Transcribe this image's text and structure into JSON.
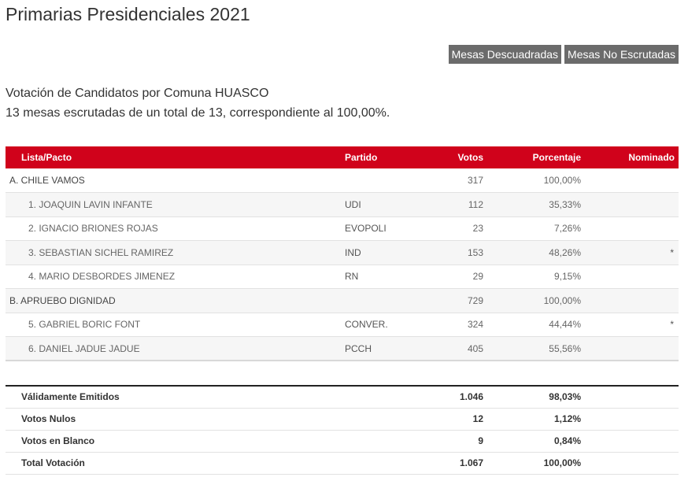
{
  "page_title": "Primarias Presidenciales 2021",
  "buttons": {
    "mesas_descuadradas": "Mesas Descuadradas",
    "mesas_no_escrutadas": "Mesas No Escrutadas"
  },
  "info": {
    "line1": "Votación de Candidatos por Comuna HUASCO",
    "line2": "13 mesas escrutadas de un total de 13, correspondiente al 100,00%."
  },
  "table": {
    "headers": {
      "lista": "Lista/Pacto",
      "partido": "Partido",
      "votos": "Votos",
      "porcentaje": "Porcentaje",
      "nominado": "Nominado"
    },
    "rows": [
      {
        "name": "A. CHILE VAMOS",
        "partido": "",
        "votos": "317",
        "porcentaje": "100,00%",
        "nominado": ""
      },
      {
        "name": "1. JOAQUIN LAVIN INFANTE",
        "partido": "UDI",
        "votos": "112",
        "porcentaje": "35,33%",
        "nominado": ""
      },
      {
        "name": "2. IGNACIO BRIONES ROJAS",
        "partido": "EVOPOLI",
        "votos": "23",
        "porcentaje": "7,26%",
        "nominado": ""
      },
      {
        "name": "3. SEBASTIAN SICHEL RAMIREZ",
        "partido": "IND",
        "votos": "153",
        "porcentaje": "48,26%",
        "nominado": "*"
      },
      {
        "name": "4. MARIO DESBORDES JIMENEZ",
        "partido": "RN",
        "votos": "29",
        "porcentaje": "9,15%",
        "nominado": ""
      },
      {
        "name": "B. APRUEBO DIGNIDAD",
        "partido": "",
        "votos": "729",
        "porcentaje": "100,00%",
        "nominado": ""
      },
      {
        "name": "5. GABRIEL BORIC FONT",
        "partido": "CONVER.",
        "votos": "324",
        "porcentaje": "44,44%",
        "nominado": "*"
      },
      {
        "name": "6. DANIEL JADUE JADUE",
        "partido": "PCCH",
        "votos": "405",
        "porcentaje": "55,56%",
        "nominado": ""
      }
    ]
  },
  "totals": [
    {
      "label": "Válidamente Emitidos",
      "votos": "1.046",
      "porcentaje": "98,03%"
    },
    {
      "label": "Votos Nulos",
      "votos": "12",
      "porcentaje": "1,12%"
    },
    {
      "label": "Votos en Blanco",
      "votos": "9",
      "porcentaje": "0,84%"
    },
    {
      "label": "Total Votación",
      "votos": "1.067",
      "porcentaje": "100,00%"
    }
  ],
  "colors": {
    "header_red": "#d0021b",
    "button_gray": "#6b6b6b"
  }
}
